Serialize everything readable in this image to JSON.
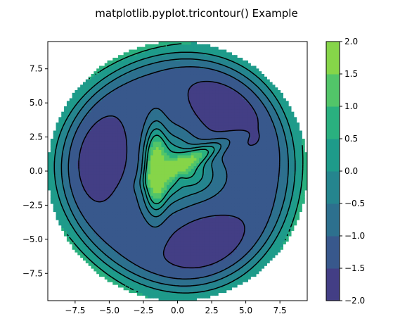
{
  "figure": {
    "title": "matplotlib.pyplot.tricontour() Example"
  },
  "chart_data": {
    "type": "filled-contour",
    "title": "matplotlib.pyplot.tricontour() Example",
    "xlabel": "",
    "ylabel": "",
    "xlim": [
      -9.5,
      9.5
    ],
    "ylim": [
      -9.5,
      9.5
    ],
    "xticks": [
      -7.5,
      -5.0,
      -2.5,
      0.0,
      2.5,
      5.0,
      7.5
    ],
    "xtick_labels": [
      "−7.5",
      "−5.0",
      "−2.5",
      "0.0",
      "2.5",
      "5.0",
      "7.5"
    ],
    "yticks": [
      -7.5,
      -5.0,
      -2.5,
      0.0,
      2.5,
      5.0,
      7.5
    ],
    "ytick_labels": [
      "−7.5",
      "−5.0",
      "−2.5",
      "0.0",
      "2.5",
      "5.0",
      "7.5"
    ],
    "grid": false,
    "colormap": "viridis",
    "domain_radius": 9.5,
    "levels": [
      -2.0,
      -1.5,
      -1.0,
      -0.5,
      0.0,
      0.5,
      1.0,
      1.5,
      2.0
    ],
    "band_colors": [
      "#433e85",
      "#38588c",
      "#2d708e",
      "#25858e",
      "#1e9b8a",
      "#2ab07f",
      "#52c569",
      "#86d549"
    ],
    "contour_lines": [
      {
        "level": 0.5,
        "style": "solid"
      },
      {
        "level": 0.0,
        "style": "solid"
      },
      {
        "level": -0.5,
        "style": "solid"
      },
      {
        "level": -1.0,
        "style": "dashed"
      },
      {
        "level": -1.5,
        "style": "dashed"
      }
    ],
    "colorbar": {
      "location": "right",
      "ticks": [
        2.0,
        1.5,
        1.0,
        0.5,
        0.0,
        -0.5,
        -1.0,
        -1.5,
        -2.0
      ],
      "tick_labels": [
        "2.0",
        "1.5",
        "1.0",
        "0.5",
        "0.0",
        "−0.5",
        "−1.0",
        "−1.5",
        "−2.0"
      ]
    }
  },
  "colors": {
    "axes_edge": "#000000",
    "contour_line": "#000000",
    "background": "#ffffff"
  }
}
